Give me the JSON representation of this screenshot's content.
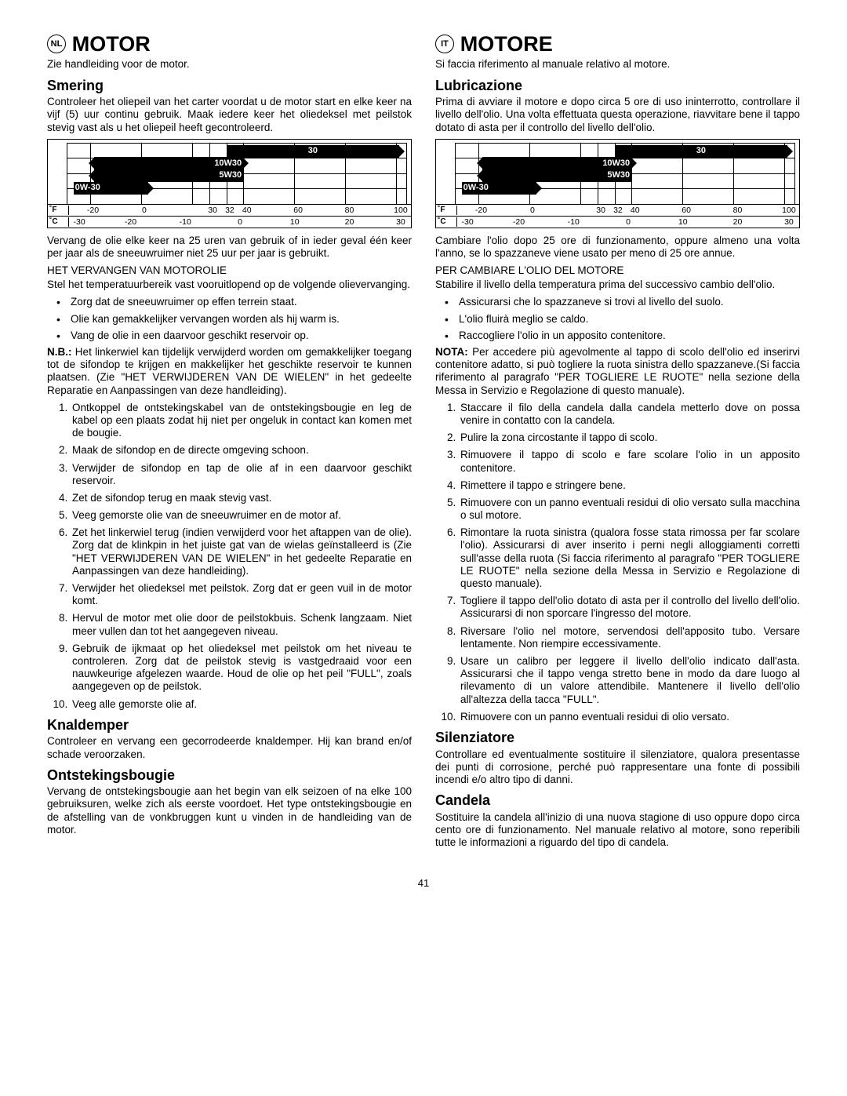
{
  "page_number": "41",
  "left": {
    "lang": "NL",
    "title": "MOTOR",
    "subtitle": "Zie handleiding voor de motor.",
    "s1_h": "Smering",
    "s1_p": "Controleer het oliepeil van het carter voordat u de motor start en elke keer na vijf (5) uur continu gebruik. Maak iedere keer het oliedeksel met peilstok stevig vast als u het oliepeil heeft gecontroleerd.",
    "after_chart": "Vervang de olie elke keer na 25 uren van gebruik of in ieder geval één keer per jaar als de sneeuwruimer niet 25 uur per jaar is gebruikt.",
    "sec_h": "HET VERVANGEN VAN MOTOROLIE",
    "sec_p": "Stel het temperatuurbereik vast vooruitlopend op de volgende olieverv­anging.",
    "bul1": "Zorg dat de sneeuwruimer op effen terrein staat.",
    "bul2": "Olie kan gemakkelijker vervangen worden als hij warm is.",
    "bul3": "Vang de olie in een daarvoor geschikt reservoir op.",
    "nb": "N.B.:",
    "nb_p": " Het linkerwiel kan tijdelijk verwijderd worden om ge­makkelijker toegang tot de sifondop te krijgen en makkelijker het geschikte reservoir te kunnen plaatsen. (Zie \"HET VER­WIJDEREN VAN DE WIELEN\" in het gedeelte Reparatie en Aanpassingen van deze handleiding).",
    "ol1": "Ontkoppel de ontstekingskabel van de ontstekingsbougie en leg de kabel op een plaats zodat hij niet per ongeluk in contact kan komen met de bougie.",
    "ol2": "Maak de sifondop en de directe omgeving schoon.",
    "ol3": "Verwijder de sifondop en tap de olie af in een daarvoor geschikt reservoir.",
    "ol4": "Zet de sifondop terug en maak stevig vast.",
    "ol5": "Veeg gemorste olie van de sneeuwruimer en de motor af.",
    "ol6": "Zet het linkerwiel terug (indien verwijderd voor het aftap­pen van de olie). Zorg dat de klinkpin in het juiste gat van de wielas geïnstalleerd is (Zie \"HET VERWIJDEREN VAN DE WIELEN\" in het gedeelte Reparatie en Aanpassingen van deze handleiding).",
    "ol7": "Verwijder het oliedeksel met peilstok. Zorg dat er geen vuil in de motor komt.",
    "ol8": "Hervul de motor met olie door de peilstokbuis. Schenk langzaam. Niet meer vullen dan tot het aangegeven niveau.",
    "ol9": "Gebruik de ijkmaat op het oliedeksel met peilstok om het niveau te controleren. Zorg dat de peilstok stevig is vastgedraaid voor een nauwkeurige afgelezen waarde. Houd de olie op het peil \"FULL\", zoals aangegeven op de peilstok.",
    "ol10": "Veeg alle gemorste olie af.",
    "s2_h": "Knaldemper",
    "s2_p": "Controleer en vervang een gecorrodeerde knaldemper. Hij kan brand en/of schade veroorzaken.",
    "s3_h": "Ontstekingsbougie",
    "s3_p": "Vervang de ontstekingsbougie aan het begin van elk seizoen of na elke 100 gebruiksuren, welke zich als eerste voordoet. Het type ontstekingsbougie en de afstelling van de vonkbrug­gen kunt u vinden in de handleiding van de motor."
  },
  "right": {
    "lang": "IT",
    "title": "MOTORE",
    "subtitle": "Si faccia riferimento al manuale relativo al motore.",
    "s1_h": "Lubricazione",
    "s1_p": "Prima di avviare il motore e dopo circa 5 ore di uso ininter­rotto, controllare il livello dell'olio. Una volta effettuata questa operazione, riavvitare bene il tappo dotato di asta per il con­trollo del livello dell'olio.",
    "after_chart": "Cambiare l'olio dopo 25 ore di funzionamento, oppure almeno una volta l'anno, se lo spazzaneve viene usato per meno di 25 ore annue.",
    "sec_h": "PER CAMBIARE L'OLIO DEL MOTORE",
    "sec_p": "Stabilire il livello della temperatura prima del successivo cambio dell'olio.",
    "bul1": "Assicurarsi che lo spazzaneve si trovi al livello del suolo.",
    "bul2": "L'olio fluirà meglio se caldo.",
    "bul3": "Raccogliere l'olio in un apposito contenitore.",
    "nb": "NOTA:",
    "nb_p": " Per accedere più agevolmente al tappo di scolo dell'olio ed inserirvi contenitore adatto, si può togliere la ruota sinistra dello spazzaneve.(Si faccia riferimento al paragrafo \"PER TO­GLIERE LE RUOTE\" nella sezione della Messa in Servizio e Regolazione di questo manuale).",
    "ol1": "Staccare il filo della candela dalla candela metterlo dove on possa venire in contatto con la candela.",
    "ol2": "Pulire la zona circostante il tappo di scolo.",
    "ol3": "Rimuovere il tappo di scolo e fare scolare l'olio in un ap­posito contenitore.",
    "ol4": "Rimettere il tappo e stringere bene.",
    "ol5": "Rimuovere con un panno eventuali residui di olio versato sulla macchina o sul motore.",
    "ol6": "Rimontare la ruota sinistra (qualora fosse stata rimossa per far scolare l'olio). Assicurarsi di aver inserito i perni negli alloggiamenti corretti sull'asse della ruota (Si faccia riferimento al paragrafo \"PER TOGLIERE LE RUOTE\" nella sezione della Messa in Servizio e Regolazione di questo manuale).",
    "ol7": "Togliere il tappo dell'olio dotato di asta per il controllo del livello dell'olio. Assicurarsi di non sporcare l'ingresso del motore.",
    "ol8": "Riversare l'olio nel motore, servendosi dell'apposito tubo. Versare lentamente. Non riempire eccessivamente.",
    "ol9": "Usare un calibro per leggere il livello dell'olio indicato dall'asta. Assicurarsi che il tappo venga stretto bene in modo da dare luogo al rilevamento di un valore attendi­bile. Mantenere il livello dell'olio all'altezza della tacca \"FULL\".",
    "ol10": "Rimuovere con un panno eventuali residui di olio ver­sato.",
    "s2_h": "Silenziatore",
    "s2_p": "Controllare ed eventualmente sostituire il silenziatore, qualora presentasse dei punti di corrosione, perché può rappresentare una fonte di possibili incendi e/o altro tipo di danni.",
    "s3_h": "Candela",
    "s3_p": "Sostituire la candela all'inizio di una nuova stagione di uso oppure dopo circa cento ore di funzionamento. Nel manuale relativo al motore, sono reperibili tutte le informazioni a riguardo del tipo di candela."
  },
  "chart": {
    "oils": {
      "b30": "30",
      "b10w30": "10W30",
      "b5w30": "5W30",
      "b0w30": "0W-30"
    },
    "unit_f": "°F",
    "unit_c": "°C",
    "f_ticks": [
      "-20",
      "0",
      "30",
      "32",
      "40",
      "60",
      "80",
      "100"
    ],
    "f_pos": [
      7,
      22,
      42,
      47,
      52,
      67,
      82,
      97
    ],
    "c_ticks": [
      "-30",
      "-20",
      "-10",
      "0",
      "10",
      "20",
      "30"
    ],
    "c_pos": [
      3,
      18,
      34,
      50,
      66,
      82,
      97
    ],
    "grid_pos": [
      0,
      7,
      22,
      37,
      42,
      47,
      52,
      67,
      82,
      97,
      100
    ]
  }
}
